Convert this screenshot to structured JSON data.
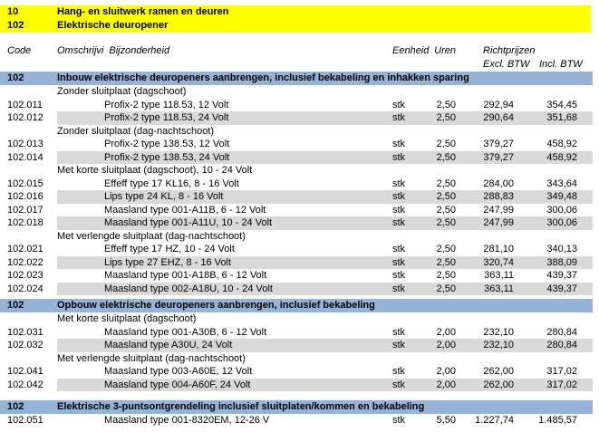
{
  "colors": {
    "banner_bg": "#ffff00",
    "section_bg": "#95b3d7",
    "stripe_bg": "#d9d9d9",
    "text": "#000000"
  },
  "banner": {
    "rows": [
      {
        "code": "10",
        "title": "Hang- en sluitwerk ramen en deuren"
      },
      {
        "code": "102",
        "title": "Elektrische deuropener"
      }
    ]
  },
  "table_header": {
    "code": "Code",
    "omschrijving": "Omschrijvi",
    "bijzonderheid": "Bijzonderheid",
    "eenheid": "Eenheid",
    "uren": "Uren",
    "richtprijzen": "Richtprijzen",
    "excl_btw": "Excl. BTW",
    "incl_btw": "Incl. BTW"
  },
  "sections": [
    {
      "code": "102",
      "title": "Inbouw elektrische deuropeners aanbrengen, inclusief bekabeling en inhakken sparing",
      "groups": [
        {
          "subtitle": "Zonder sluitplaat (dagschoot)",
          "items": [
            {
              "code": "102.011",
              "desc": "Profix-2 type 118.53, 12 Volt",
              "eenheid": "stk",
              "uren": "2,50",
              "excl": "292,94",
              "incl": "354,45"
            },
            {
              "code": "102.012",
              "desc": "Profix-2 type 118.53, 24 Volt",
              "eenheid": "stk",
              "uren": "2,50",
              "excl": "290,64",
              "incl": "351,68"
            }
          ]
        },
        {
          "subtitle": "Zonder sluitplaat (dag-nachtschoot)",
          "items": [
            {
              "code": "102.013",
              "desc": "Profix-2 type 138.53, 12 Volt",
              "eenheid": "stk",
              "uren": "2,50",
              "excl": "379,27",
              "incl": "458,92"
            },
            {
              "code": "102.014",
              "desc": "Profix-2 type 138.53, 24 Volt",
              "eenheid": "stk",
              "uren": "2,50",
              "excl": "379,27",
              "incl": "458,92"
            }
          ]
        },
        {
          "subtitle": "Met korte sluitplaat (dagschoot), 10 - 24 Volt",
          "items": [
            {
              "code": "102.015",
              "desc": "Effeff type 17 KL16, 8 - 16 Volt",
              "eenheid": "stk",
              "uren": "2,50",
              "excl": "284,00",
              "incl": "343,64"
            },
            {
              "code": "102.016",
              "desc": "Lips type 24 KL, 8 - 16 Volt",
              "eenheid": "stk",
              "uren": "2,50",
              "excl": "288,83",
              "incl": "349,48"
            },
            {
              "code": "102.017",
              "desc": "Maasland type 001-A11B, 6 - 12 Volt",
              "eenheid": "stk",
              "uren": "2,50",
              "excl": "247,99",
              "incl": "300,06"
            },
            {
              "code": "102.018",
              "desc": "Maasland type 001-A11U, 10 - 24 Volt",
              "eenheid": "stk",
              "uren": "2,50",
              "excl": "247,99",
              "incl": "300,06"
            }
          ]
        },
        {
          "subtitle": "Met verlengde sluitplaat (dag-nachtschoot)",
          "items": [
            {
              "code": "102.021",
              "desc": "Effeff type 17 HZ, 10 - 24 Volt",
              "eenheid": "stk",
              "uren": "2,50",
              "excl": "281,10",
              "incl": "340,13"
            },
            {
              "code": "102.022",
              "desc": "Lips type 27 EHZ, 8 - 16 Volt",
              "eenheid": "stk",
              "uren": "2,50",
              "excl": "320,74",
              "incl": "388,09"
            },
            {
              "code": "102.023",
              "desc": "Maasland type 001-A18B, 6 - 12 Volt",
              "eenheid": "stk",
              "uren": "2,50",
              "excl": "363,11",
              "incl": "439,37"
            },
            {
              "code": "102.024",
              "desc": "Maasland type 002-A18U, 10 - 24 Volt",
              "eenheid": "stk",
              "uren": "2,50",
              "excl": "363,11",
              "incl": "439,37"
            }
          ]
        }
      ]
    },
    {
      "code": "102",
      "title": "Opbouw elektrische deuropeners aanbrengen, inclusief bekabeling",
      "groups": [
        {
          "subtitle": "Met korte sluitplaat (dagschoot)",
          "items": [
            {
              "code": "102.031",
              "desc": "Maasland type 001-A30B, 6 - 12 Volt",
              "eenheid": "stk",
              "uren": "2,00",
              "excl": "232,10",
              "incl": "280,84"
            },
            {
              "code": "102.032",
              "desc": "Maasland type A30U, 24 Volt",
              "eenheid": "stk",
              "uren": "2,00",
              "excl": "232,10",
              "incl": "280,84"
            }
          ]
        },
        {
          "subtitle": "Met verlengde sluitplaat (dag-nachtschoot)",
          "items": [
            {
              "code": "102.041",
              "desc": "Maasland type 003-A60E, 12 Volt",
              "eenheid": "stk",
              "uren": "2,00",
              "excl": "262,00",
              "incl": "317,02"
            },
            {
              "code": "102.042",
              "desc": "Maasland type 004-A60F, 24 Volt",
              "eenheid": "stk",
              "uren": "2,00",
              "excl": "262,00",
              "incl": "317,02"
            }
          ]
        }
      ]
    },
    {
      "code": "102",
      "title": "Elektrische 3-puntsontgrendeling inclusief sluitplaten/kommen en bekabeling",
      "groups": [
        {
          "subtitle": null,
          "items": [
            {
              "code": "102.051",
              "desc": "Maasland type 001-8320EM, 12-26 V",
              "eenheid": "stk",
              "uren": "5,50",
              "excl": "1.227,74",
              "incl": "1.485,57"
            }
          ]
        }
      ]
    }
  ]
}
